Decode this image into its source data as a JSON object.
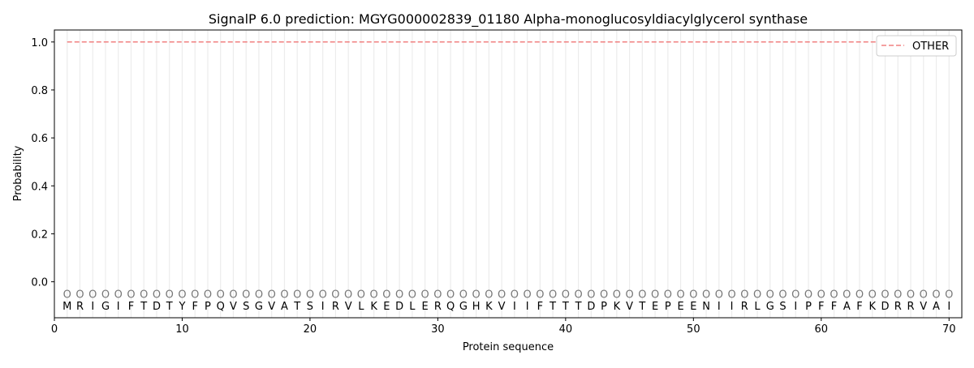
{
  "chart_data": {
    "type": "line",
    "title": "SignalP 6.0 prediction: MGYG000002839_01180 Alpha-monoglucosyldiacylglycerol synthase",
    "xlabel": "Protein sequence",
    "ylabel": "Probability",
    "xlim": [
      0,
      71
    ],
    "ylim": [
      -0.15,
      1.05
    ],
    "xticks": [
      0,
      10,
      20,
      30,
      40,
      50,
      60,
      70
    ],
    "yticks": [
      0.0,
      0.2,
      0.4,
      0.6,
      0.8,
      1.0
    ],
    "ytick_labels": [
      "0.0",
      "0.2",
      "0.4",
      "0.6",
      "0.8",
      "1.0"
    ],
    "grid": "vertical lines at each residue",
    "legend_position": "top-right",
    "sequence": "MRIGIFTDTYFPQVSGVATSIRVLKEDLERQGHKVIIFTTTDPKVTEPEENIIRLGSIPFFAFKDRRVAI",
    "region_labels": "OOOOOOOOOOOOOOOOOOOOOOOOOOOOOOOOOOOOOOOOOOOOOOOOOOOOOOOOOOOOOOOOOOOOOO",
    "series": [
      {
        "name": "OTHER",
        "color": "#f08080",
        "style": "dashed",
        "x_start": 1,
        "x_end": 70,
        "value": 1.0
      }
    ]
  }
}
